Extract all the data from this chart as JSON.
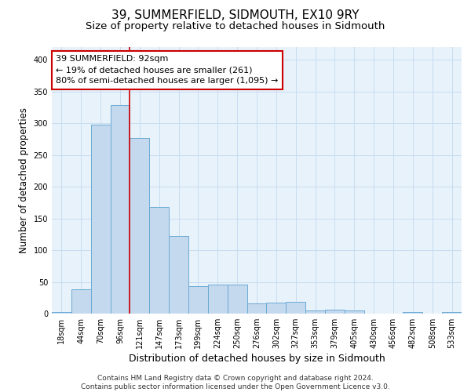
{
  "title": "39, SUMMERFIELD, SIDMOUTH, EX10 9RY",
  "subtitle": "Size of property relative to detached houses in Sidmouth",
  "xlabel": "Distribution of detached houses by size in Sidmouth",
  "ylabel": "Number of detached properties",
  "bar_labels": [
    "18sqm",
    "44sqm",
    "70sqm",
    "96sqm",
    "121sqm",
    "147sqm",
    "173sqm",
    "199sqm",
    "224sqm",
    "250sqm",
    "276sqm",
    "302sqm",
    "327sqm",
    "353sqm",
    "379sqm",
    "405sqm",
    "430sqm",
    "456sqm",
    "482sqm",
    "508sqm",
    "533sqm"
  ],
  "bar_values": [
    3,
    38,
    298,
    328,
    277,
    168,
    122,
    43,
    46,
    46,
    16,
    17,
    19,
    5,
    6,
    5,
    0,
    0,
    2,
    0,
    2
  ],
  "bar_color": "#c5d9ee",
  "bar_edge_color": "#6aaad4",
  "grid_color": "#c8ddf0",
  "background_color": "#e8f2fb",
  "vline_x": 3.5,
  "vline_color": "#cc0000",
  "annotation_text": "39 SUMMERFIELD: 92sqm\n← 19% of detached houses are smaller (261)\n80% of semi-detached houses are larger (1,095) →",
  "annotation_box_color": "#ffffff",
  "annotation_box_edge": "#cc0000",
  "ylim": [
    0,
    420
  ],
  "yticks": [
    0,
    50,
    100,
    150,
    200,
    250,
    300,
    350,
    400
  ],
  "footer_text": "Contains HM Land Registry data © Crown copyright and database right 2024.\nContains public sector information licensed under the Open Government Licence v3.0.",
  "title_fontsize": 11,
  "subtitle_fontsize": 9.5,
  "xlabel_fontsize": 9,
  "ylabel_fontsize": 8.5,
  "tick_fontsize": 7,
  "annotation_fontsize": 8,
  "footer_fontsize": 6.5
}
